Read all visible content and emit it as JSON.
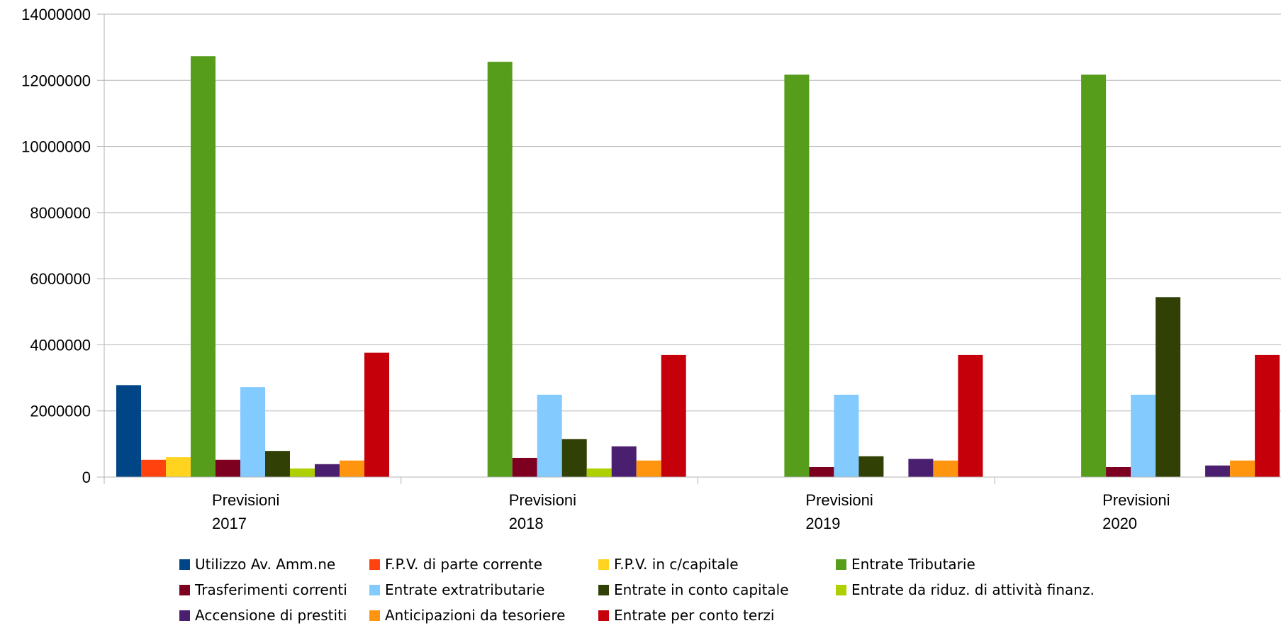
{
  "chart_data": {
    "type": "bar",
    "ylim": [
      0,
      14000000
    ],
    "yticks": [
      "0",
      "2000000",
      "4000000",
      "6000000",
      "8000000",
      "10000000",
      "12000000",
      "14000000"
    ],
    "grid": true,
    "legend_position": "bottom",
    "categories": [
      [
        "Previsioni",
        "2017"
      ],
      [
        "Previsioni",
        "2018"
      ],
      [
        "Previsioni",
        "2019"
      ],
      [
        "Previsioni",
        "2020"
      ]
    ],
    "series": [
      {
        "name": "Utilizzo Av. Amm.ne",
        "color": "#004586",
        "values": [
          2780000,
          0,
          0,
          0
        ]
      },
      {
        "name": "F.P.V. di parte corrente",
        "color": "#ff420e",
        "values": [
          520000,
          0,
          0,
          0
        ]
      },
      {
        "name": "F.P.V.  in c/capitale",
        "color": "#ffd320",
        "values": [
          600000,
          0,
          0,
          0
        ]
      },
      {
        "name": "Entrate Tributarie",
        "color": "#579d1c",
        "values": [
          12730000,
          12560000,
          12170000,
          12170000
        ]
      },
      {
        "name": "Trasferimenti correnti",
        "color": "#7e0021",
        "values": [
          520000,
          580000,
          300000,
          300000
        ]
      },
      {
        "name": "Entrate extratributarie",
        "color": "#83caff",
        "values": [
          2720000,
          2490000,
          2490000,
          2490000
        ]
      },
      {
        "name": "Entrate in conto capitale",
        "color": "#314004",
        "values": [
          790000,
          1150000,
          630000,
          5440000
        ]
      },
      {
        "name": "Entrate da riduz. di attività finanz.",
        "color": "#aecf00",
        "values": [
          260000,
          260000,
          0,
          0
        ]
      },
      {
        "name": "Accensione di prestiti",
        "color": "#4b1f6f",
        "values": [
          390000,
          930000,
          550000,
          350000
        ]
      },
      {
        "name": "Anticipazioni da tesoriere",
        "color": "#ff950e",
        "values": [
          500000,
          500000,
          500000,
          500000
        ]
      },
      {
        "name": "Entrate per conto terzi",
        "color": "#c5000b",
        "values": [
          3760000,
          3690000,
          3690000,
          3690000
        ]
      }
    ]
  },
  "legend_rows": [
    [
      0,
      1,
      2,
      3
    ],
    [
      4,
      5,
      6,
      7
    ],
    [
      8,
      9,
      10
    ]
  ]
}
